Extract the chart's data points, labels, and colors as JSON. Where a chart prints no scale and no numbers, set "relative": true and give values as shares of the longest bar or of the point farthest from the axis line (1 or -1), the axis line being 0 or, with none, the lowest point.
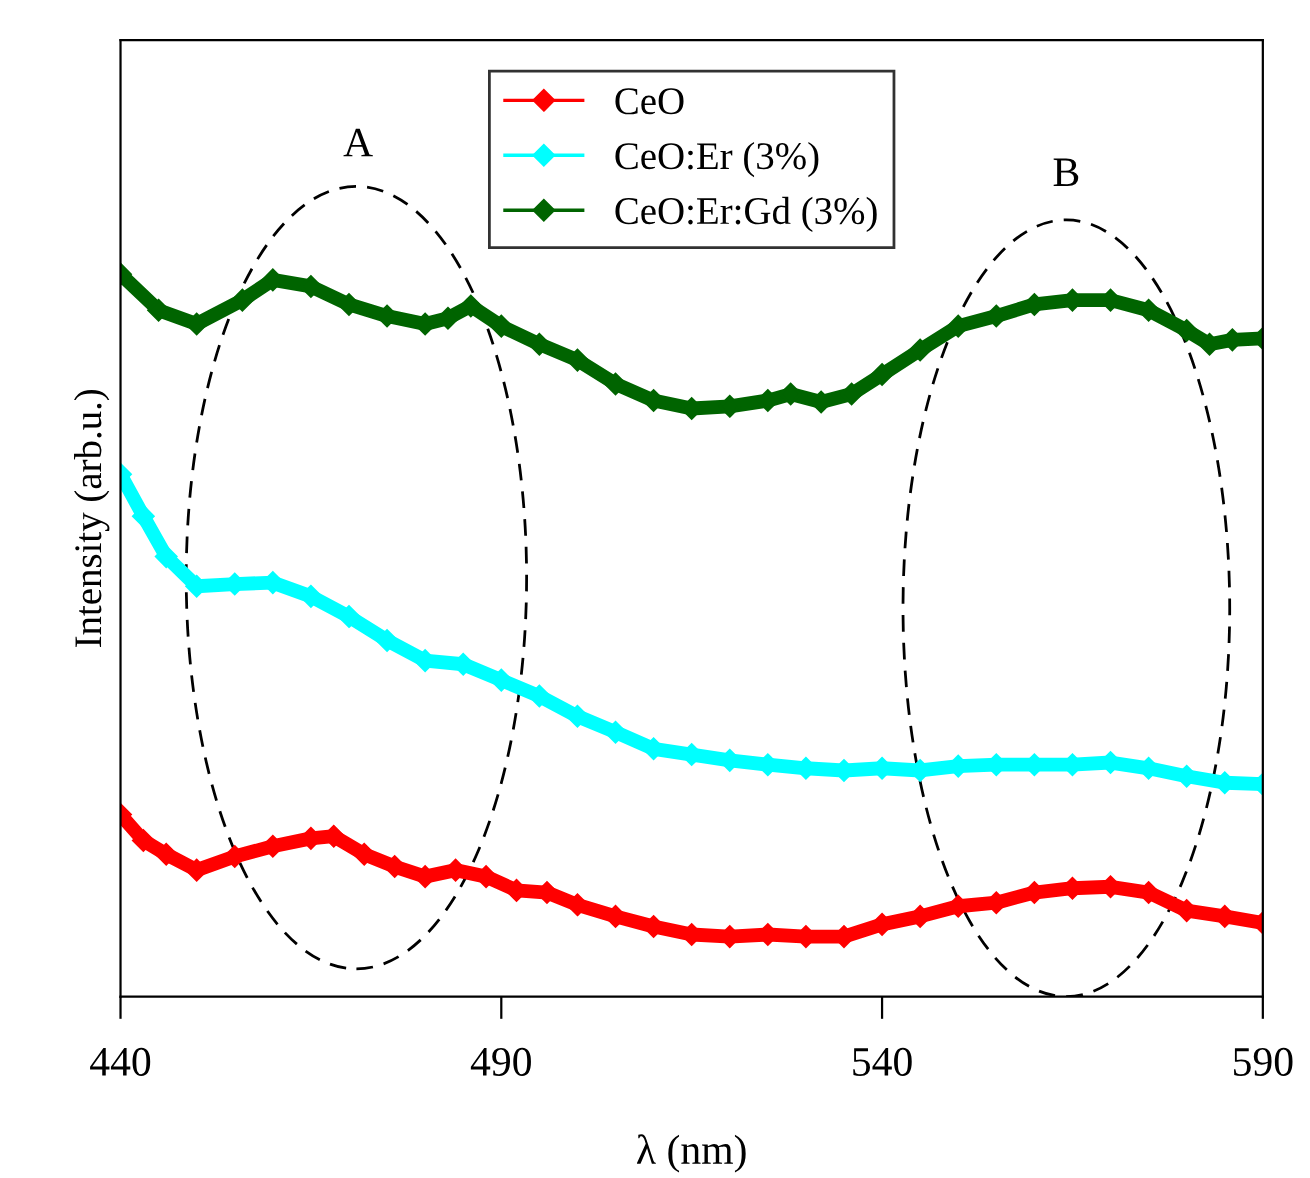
{
  "chart_data": {
    "type": "line",
    "xlabel": "λ (nm)",
    "ylabel": "Intensity (arb.u.)",
    "relative": true,
    "xlim": [
      440,
      590
    ],
    "xticks": [
      440,
      490,
      540,
      590
    ],
    "marker": "diamond",
    "line_style": "solid",
    "legend": "top",
    "grid": false,
    "annotations": [
      "A",
      "B"
    ],
    "series": [
      {
        "name": "CeO",
        "color": "#ff0000",
        "x": [
          440,
          443,
          446,
          450,
          455,
          460,
          465,
          468,
          472,
          476,
          480,
          484,
          488,
          492,
          496,
          500,
          505,
          510,
          515,
          520,
          525,
          530,
          535,
          540,
          545,
          550,
          555,
          560,
          565,
          570,
          575,
          580,
          585,
          590
        ],
        "values": [
          0.252,
          0.216,
          0.197,
          0.175,
          0.194,
          0.208,
          0.219,
          0.222,
          0.197,
          0.18,
          0.166,
          0.175,
          0.166,
          0.147,
          0.144,
          0.127,
          0.111,
          0.097,
          0.086,
          0.083,
          0.086,
          0.083,
          0.083,
          0.1,
          0.111,
          0.125,
          0.13,
          0.144,
          0.15,
          0.152,
          0.144,
          0.119,
          0.111,
          0.102
        ]
      },
      {
        "name": "CeO:Er (3%)",
        "color": "#00ffff",
        "x": [
          440,
          443,
          446,
          450,
          455,
          460,
          465,
          470,
          475,
          480,
          485,
          490,
          495,
          500,
          505,
          510,
          515,
          520,
          525,
          530,
          535,
          540,
          545,
          550,
          555,
          560,
          565,
          570,
          575,
          580,
          585,
          590
        ],
        "values": [
          0.723,
          0.665,
          0.609,
          0.568,
          0.571,
          0.573,
          0.554,
          0.526,
          0.493,
          0.465,
          0.46,
          0.438,
          0.416,
          0.388,
          0.366,
          0.343,
          0.335,
          0.327,
          0.321,
          0.316,
          0.313,
          0.316,
          0.313,
          0.319,
          0.321,
          0.321,
          0.321,
          0.324,
          0.316,
          0.305,
          0.296,
          0.294
        ]
      },
      {
        "name": "CeO:Er:Gd (3%)",
        "color": "#006400",
        "x": [
          440,
          445,
          450,
          456,
          460,
          465,
          470,
          475,
          480,
          483,
          486,
          490,
          495,
          500,
          505,
          510,
          515,
          520,
          525,
          528,
          532,
          536,
          540,
          545,
          550,
          555,
          560,
          565,
          570,
          575,
          580,
          583,
          586,
          590
        ],
        "values": [
          1,
          0.95,
          0.931,
          0.964,
          0.992,
          0.983,
          0.958,
          0.942,
          0.931,
          0.939,
          0.956,
          0.928,
          0.903,
          0.881,
          0.848,
          0.825,
          0.814,
          0.817,
          0.825,
          0.834,
          0.823,
          0.834,
          0.861,
          0.895,
          0.928,
          0.942,
          0.958,
          0.964,
          0.964,
          0.95,
          0.922,
          0.903,
          0.909,
          0.911
        ]
      }
    ]
  }
}
